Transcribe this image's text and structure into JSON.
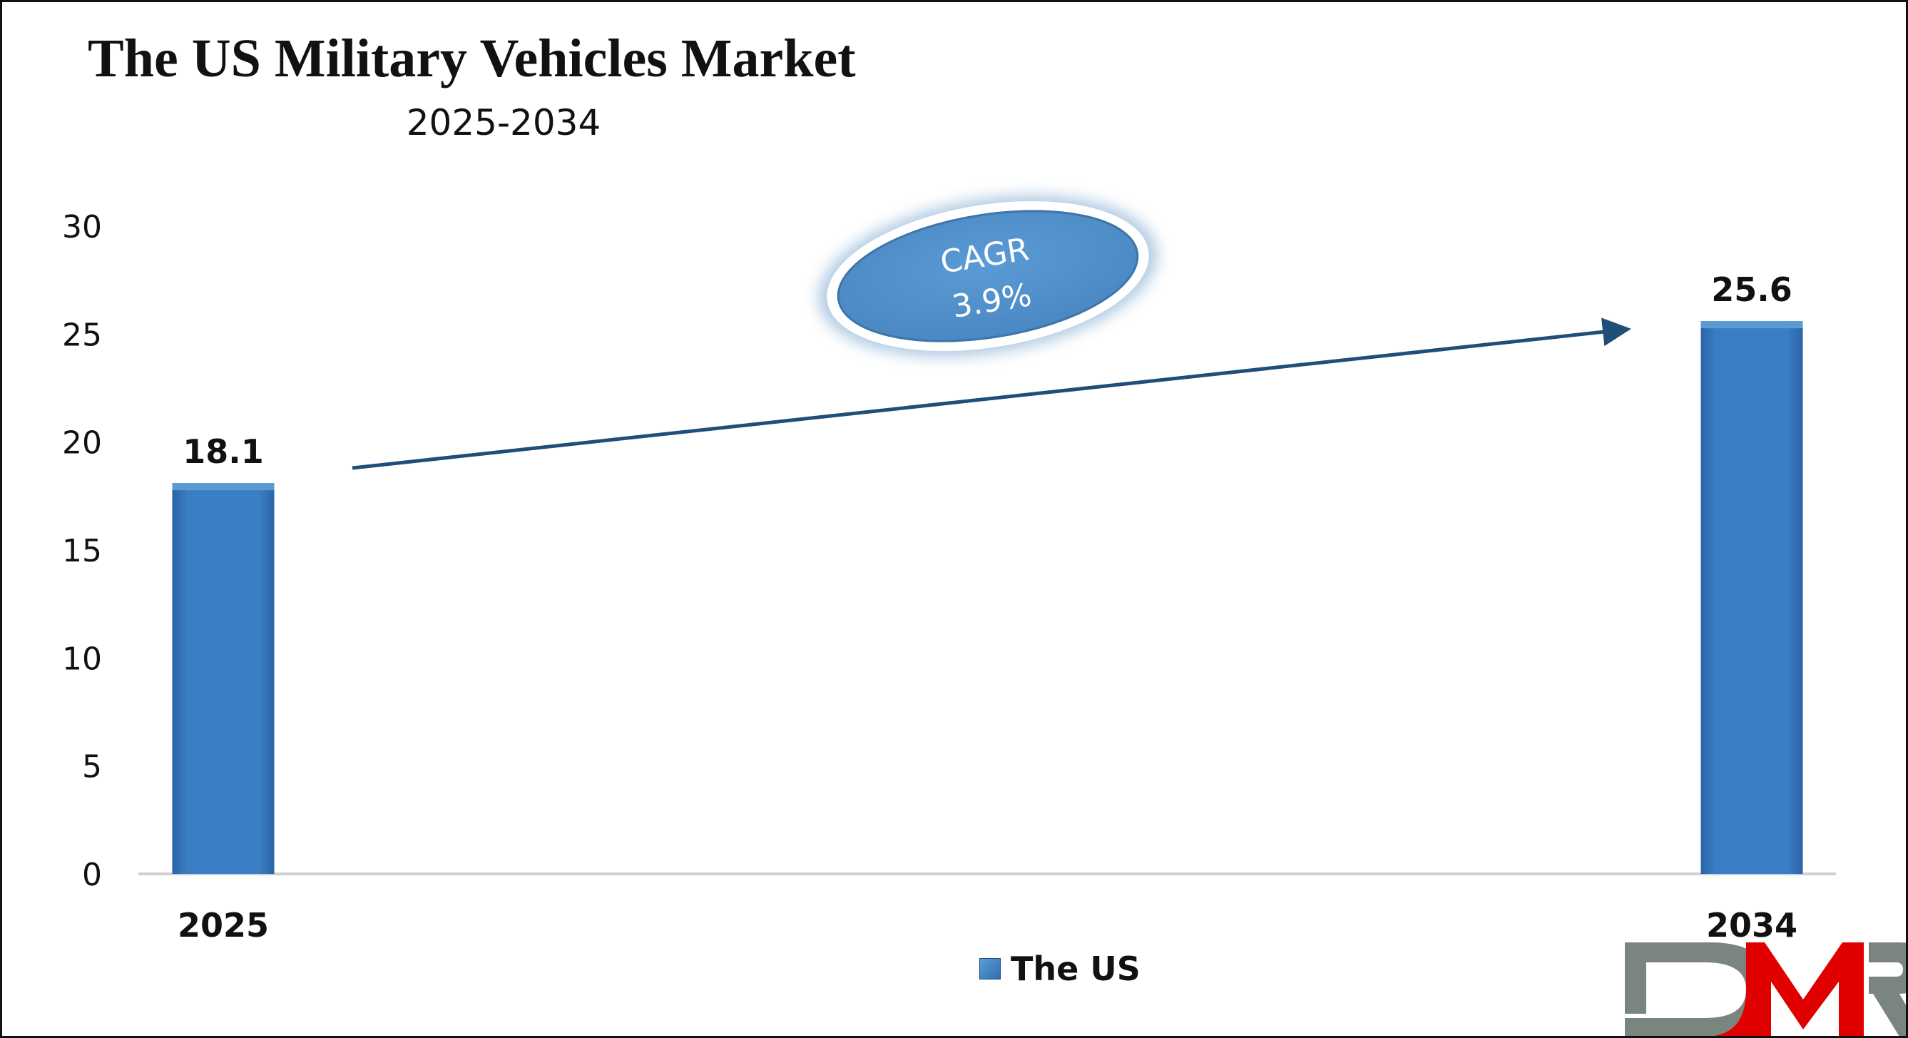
{
  "chart_data": {
    "type": "bar",
    "title": "The US Military Vehicles Market",
    "subtitle": "2025-2034",
    "categories": [
      "2025",
      "2034"
    ],
    "series": [
      {
        "name": "The US",
        "values": [
          18.1,
          25.6
        ],
        "color": "#3a7ec4"
      }
    ],
    "data_labels": [
      "18.1",
      "25.6"
    ],
    "ylim": [
      0,
      30
    ],
    "yticks": [
      0,
      5,
      10,
      15,
      20,
      25,
      30
    ],
    "ytick_labels": [
      "0",
      "5",
      "10",
      "15",
      "20",
      "25",
      "30"
    ],
    "grid": false,
    "legend_position": "bottom",
    "annotation": {
      "label": "CAGR",
      "value": "3.9%",
      "color": "#5b9bd5"
    }
  },
  "logo": {
    "text": "DMR",
    "colors": {
      "D": "#7a8580",
      "M": "#e00000",
      "R": "#7a8580"
    }
  }
}
